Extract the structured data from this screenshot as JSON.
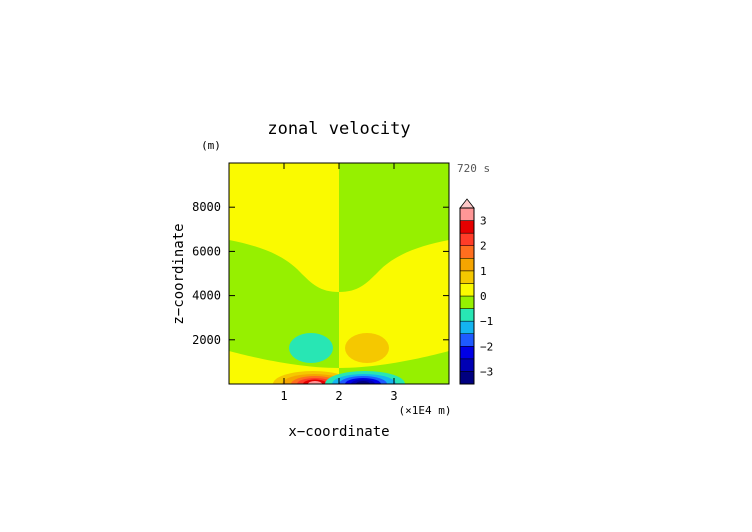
{
  "chart_data": {
    "type": "heatmap",
    "title": "zonal velocity",
    "xlabel": "x−coordinate",
    "ylabel": "z−coordinate",
    "x_unit": "(×1E4 m)",
    "y_unit": "(m)",
    "time_label": "720 s",
    "xlim": [
      0,
      4
    ],
    "ylim": [
      0,
      10000
    ],
    "x_ticks": [
      1,
      2,
      3
    ],
    "x_tick_labels": [
      "1",
      "2",
      "3"
    ],
    "y_ticks": [
      2000,
      4000,
      6000,
      8000
    ],
    "y_tick_labels": [
      "2000",
      "4000",
      "6000",
      "8000"
    ],
    "colorbar": {
      "range": [
        -3.5,
        3.5
      ],
      "tick_values": [
        3,
        2,
        1,
        0,
        -1,
        -2,
        -3
      ],
      "tick_labels": [
        "3",
        "2",
        "1",
        "0",
        "−1",
        "−2",
        "−3"
      ],
      "levels": [
        {
          "min": -3.5,
          "max": -3.0,
          "color": "#000080"
        },
        {
          "min": -3.0,
          "max": -2.5,
          "color": "#0000b4"
        },
        {
          "min": -2.5,
          "max": -2.0,
          "color": "#0000e6"
        },
        {
          "min": -2.0,
          "max": -1.5,
          "color": "#1e5aff"
        },
        {
          "min": -1.5,
          "max": -1.0,
          "color": "#14b4f0"
        },
        {
          "min": -1.0,
          "max": -0.5,
          "color": "#28e6b4"
        },
        {
          "min": -0.5,
          "max": 0.0,
          "color": "#96f000"
        },
        {
          "min": 0.0,
          "max": 0.5,
          "color": "#fafa00"
        },
        {
          "min": 0.5,
          "max": 1.0,
          "color": "#f5c800"
        },
        {
          "min": 1.0,
          "max": 1.5,
          "color": "#f5a500"
        },
        {
          "min": 1.5,
          "max": 2.0,
          "color": "#ff6e1e"
        },
        {
          "min": 2.0,
          "max": 2.5,
          "color": "#ff3c28"
        },
        {
          "min": 2.5,
          "max": 3.0,
          "color": "#e60000"
        },
        {
          "min": 3.0,
          "max": 3.5,
          "color": "#ff9696"
        }
      ],
      "over_color": "#ffc8c8"
    },
    "field": {
      "background_regions": [
        {
          "value_range": [
            0,
            0.5
          ],
          "description_color": "#fafa00"
        },
        {
          "value_range": [
            -0.5,
            0
          ],
          "description_color": "#96f000"
        }
      ],
      "features": [
        {
          "x": 1.5,
          "z": 1400,
          "value": -0.7
        },
        {
          "x": 2.5,
          "z": 1400,
          "value": 0.7
        },
        {
          "x": 1.55,
          "z": 60,
          "value": 3.3
        },
        {
          "x": 2.45,
          "z": 60,
          "value": -3.3
        }
      ]
    }
  }
}
